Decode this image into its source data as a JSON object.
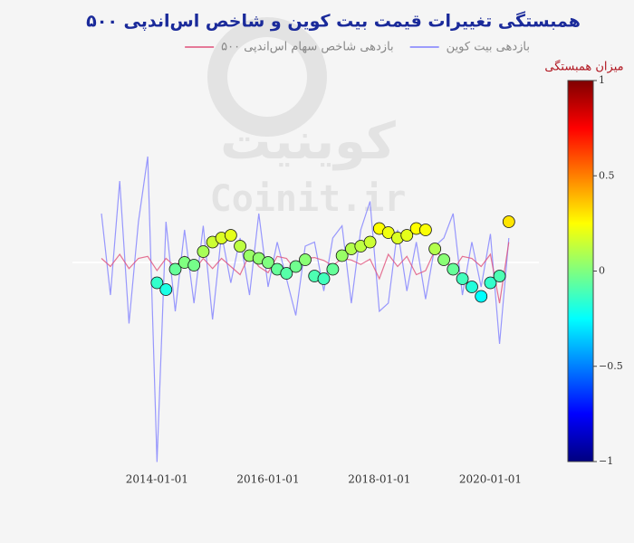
{
  "chart_data": {
    "type": "line",
    "title": "همبستگی تغییرات قیمت بیت کوین و شاخص اس‌اندپی ۵۰۰",
    "watermark": [
      "کوینیت",
      "Coinit.ir"
    ],
    "x": [
      "2013-01-01",
      "2013-03-01",
      "2013-05-01",
      "2013-07-01",
      "2013-09-01",
      "2013-11-01",
      "2014-01-01",
      "2014-03-01",
      "2014-05-01",
      "2014-07-01",
      "2014-09-01",
      "2014-11-01",
      "2015-01-01",
      "2015-03-01",
      "2015-05-01",
      "2015-07-01",
      "2015-09-01",
      "2015-11-01",
      "2016-01-01",
      "2016-03-01",
      "2016-05-01",
      "2016-07-01",
      "2016-09-01",
      "2016-11-01",
      "2017-01-01",
      "2017-03-01",
      "2017-05-01",
      "2017-07-01",
      "2017-09-01",
      "2017-11-01",
      "2018-01-01",
      "2018-03-01",
      "2018-05-01",
      "2018-07-01",
      "2018-09-01",
      "2018-11-01",
      "2019-01-01",
      "2019-03-01",
      "2019-05-01",
      "2019-07-01",
      "2019-09-01",
      "2019-11-01",
      "2020-01-01",
      "2020-03-01",
      "2020-05-01"
    ],
    "xlim": [
      "2012-12-20",
      "2020-05-20"
    ],
    "xticks": [
      "2014-01-01",
      "2016-01-01",
      "2018-01-01",
      "2020-01-01"
    ],
    "ylim": [
      -0.5,
      0.5
    ],
    "y2lim": [
      -1.5,
      1.5
    ],
    "series": [
      {
        "name": "بازدهی بیت کوین",
        "color": "#7f7fff",
        "values": [
          0.12,
          -0.08,
          0.2,
          -0.15,
          0.1,
          0.26,
          -0.49,
          0.1,
          -0.12,
          0.08,
          -0.1,
          0.09,
          -0.14,
          0.07,
          -0.05,
          0.06,
          -0.08,
          0.12,
          -0.06,
          0.05,
          -0.04,
          -0.13,
          0.04,
          0.05,
          -0.07,
          0.06,
          0.09,
          -0.1,
          0.08,
          0.15,
          -0.12,
          -0.1,
          0.08,
          -0.07,
          0.05,
          -0.09,
          0.04,
          0.06,
          0.12,
          -0.08,
          0.05,
          -0.06,
          0.07,
          -0.2,
          0.06
        ]
      },
      {
        "name": "بازدهی شاخص سهام اس‌اندپی ۵۰۰",
        "color": "#e0507a",
        "values": [
          0.01,
          -0.01,
          0.02,
          -0.015,
          0.01,
          0.015,
          -0.02,
          0.01,
          -0.01,
          0.015,
          -0.02,
          0.01,
          -0.015,
          0.01,
          -0.01,
          -0.03,
          0.02,
          -0.01,
          -0.025,
          0.015,
          0.01,
          -0.02,
          0.01,
          0.012,
          0.005,
          -0.008,
          0.01,
          0.006,
          -0.005,
          0.008,
          -0.04,
          0.02,
          -0.01,
          0.015,
          -0.03,
          -0.02,
          0.03,
          0.01,
          -0.02,
          0.015,
          0.01,
          -0.01,
          0.02,
          -0.1,
          0.05
        ]
      },
      {
        "type": "scatter",
        "axis": "y2",
        "colorscale": "Jet",
        "values": [
          null,
          null,
          null,
          null,
          null,
          null,
          -0.15,
          -0.2,
          -0.05,
          0.0,
          -0.02,
          0.08,
          0.15,
          0.18,
          0.2,
          0.12,
          0.05,
          0.03,
          0.0,
          -0.05,
          -0.08,
          -0.03,
          0.02,
          -0.1,
          -0.12,
          -0.05,
          0.05,
          0.1,
          0.12,
          0.15,
          0.25,
          0.22,
          0.18,
          0.2,
          0.25,
          0.24,
          0.1,
          0.02,
          -0.05,
          -0.12,
          -0.18,
          -0.25,
          -0.15,
          -0.1,
          0.3
        ]
      }
    ],
    "colorbar": {
      "title": "میزان همبستگی",
      "clim": [
        -1,
        1
      ],
      "ticks": [
        1,
        0.5,
        0,
        {
          "value": -0.5,
          "label": "−0.5"
        },
        {
          "value": -1,
          "label": "−1"
        }
      ]
    }
  }
}
